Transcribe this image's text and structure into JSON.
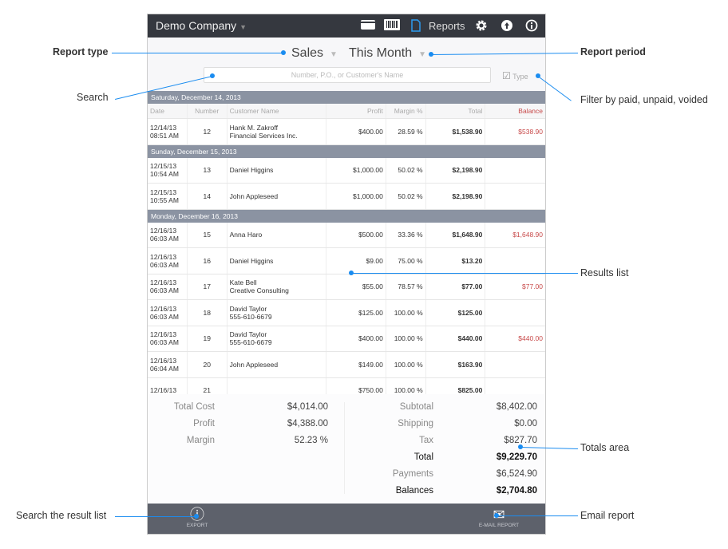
{
  "header": {
    "company": "Demo Company",
    "reports_label": "Reports",
    "icons": [
      "card-icon",
      "barcode-icon",
      "document-icon",
      "gear-icon",
      "upload-icon",
      "info-icon"
    ]
  },
  "selectors": {
    "report_type": "Sales",
    "report_period": "This Month"
  },
  "search": {
    "placeholder": "Number, P.O., or Customer's Name"
  },
  "filter": {
    "label": "Type",
    "checked": true
  },
  "columns": [
    "Date",
    "Number",
    "Customer Name",
    "Profit",
    "Margin %",
    "Total",
    "Balance"
  ],
  "groups": [
    {
      "date": "Saturday, December 14, 2013",
      "rows": [
        {
          "date": "12/14/13",
          "time": "08:51 AM",
          "number": "12",
          "name": "Hank M. Zakroff",
          "name2": "Financial Services Inc.",
          "profit": "$400.00",
          "margin": "28.59 %",
          "total": "$1,538.90",
          "balance": "$538.90"
        }
      ]
    },
    {
      "date": "Sunday, December 15, 2013",
      "rows": [
        {
          "date": "12/15/13",
          "time": "10:54 AM",
          "number": "13",
          "name": "Daniel Higgins",
          "name2": "",
          "profit": "$1,000.00",
          "margin": "50.02 %",
          "total": "$2,198.90",
          "balance": ""
        },
        {
          "date": "12/15/13",
          "time": "10:55 AM",
          "number": "14",
          "name": "John Appleseed",
          "name2": "",
          "profit": "$1,000.00",
          "margin": "50.02 %",
          "total": "$2,198.90",
          "balance": ""
        }
      ]
    },
    {
      "date": "Monday, December 16, 2013",
      "rows": [
        {
          "date": "12/16/13",
          "time": "06:03 AM",
          "number": "15",
          "name": "Anna Haro",
          "name2": "",
          "profit": "$500.00",
          "margin": "33.36 %",
          "total": "$1,648.90",
          "balance": "$1,648.90"
        },
        {
          "date": "12/16/13",
          "time": "06:03 AM",
          "number": "16",
          "name": "Daniel Higgins",
          "name2": "",
          "profit": "$9.00",
          "margin": "75.00 %",
          "total": "$13.20",
          "balance": ""
        },
        {
          "date": "12/16/13",
          "time": "06:03 AM",
          "number": "17",
          "name": "Kate Bell",
          "name2": "Creative Consulting",
          "profit": "$55.00",
          "margin": "78.57 %",
          "total": "$77.00",
          "balance": "$77.00"
        },
        {
          "date": "12/16/13",
          "time": "06:03 AM",
          "number": "18",
          "name": "David Taylor",
          "name2": "555-610-6679",
          "profit": "$125.00",
          "margin": "100.00 %",
          "total": "$125.00",
          "balance": ""
        },
        {
          "date": "12/16/13",
          "time": "06:03 AM",
          "number": "19",
          "name": "David Taylor",
          "name2": "555-610-6679",
          "profit": "$400.00",
          "margin": "100.00 %",
          "total": "$440.00",
          "balance": "$440.00"
        },
        {
          "date": "12/16/13",
          "time": "06:04 AM",
          "number": "20",
          "name": "John Appleseed",
          "name2": "",
          "profit": "$149.00",
          "margin": "100.00 %",
          "total": "$163.90",
          "balance": ""
        },
        {
          "date": "12/16/13",
          "time": "",
          "number": "21",
          "name": "",
          "name2": "",
          "profit": "$750.00",
          "margin": "100.00 %",
          "total": "$825.00",
          "balance": ""
        }
      ]
    }
  ],
  "totals": {
    "left": [
      {
        "label": "Total Cost",
        "value": "$4,014.00"
      },
      {
        "label": "Profit",
        "value": "$4,388.00"
      },
      {
        "label": "Margin",
        "value": "52.23 %"
      }
    ],
    "right": [
      {
        "label": "Subtotal",
        "value": "$8,402.00"
      },
      {
        "label": "Shipping",
        "value": "$0.00"
      },
      {
        "label": "Tax",
        "value": "$827.70"
      },
      {
        "label": "Total",
        "value": "$9,229.70",
        "bold": true
      },
      {
        "label": "Payments",
        "value": "$6,524.90"
      },
      {
        "label": "Balances",
        "value": "$2,704.80",
        "bold": true
      }
    ]
  },
  "footer": {
    "export": "EXPORT",
    "email": "E-MAIL REPORT"
  },
  "annotations": {
    "report_type": "Report type",
    "report_period": "Report period",
    "search": "Search",
    "filter": "Filter by paid, unpaid, voided",
    "results": "Results list",
    "totals": "Totals area",
    "search_results": "Search the result list",
    "email": "Email report"
  },
  "colors": {
    "accent": "#1a8cf0",
    "topbar": "#35383f",
    "section": "#8b93a2",
    "balance": "#c84a4a",
    "footer": "#5d616b"
  }
}
